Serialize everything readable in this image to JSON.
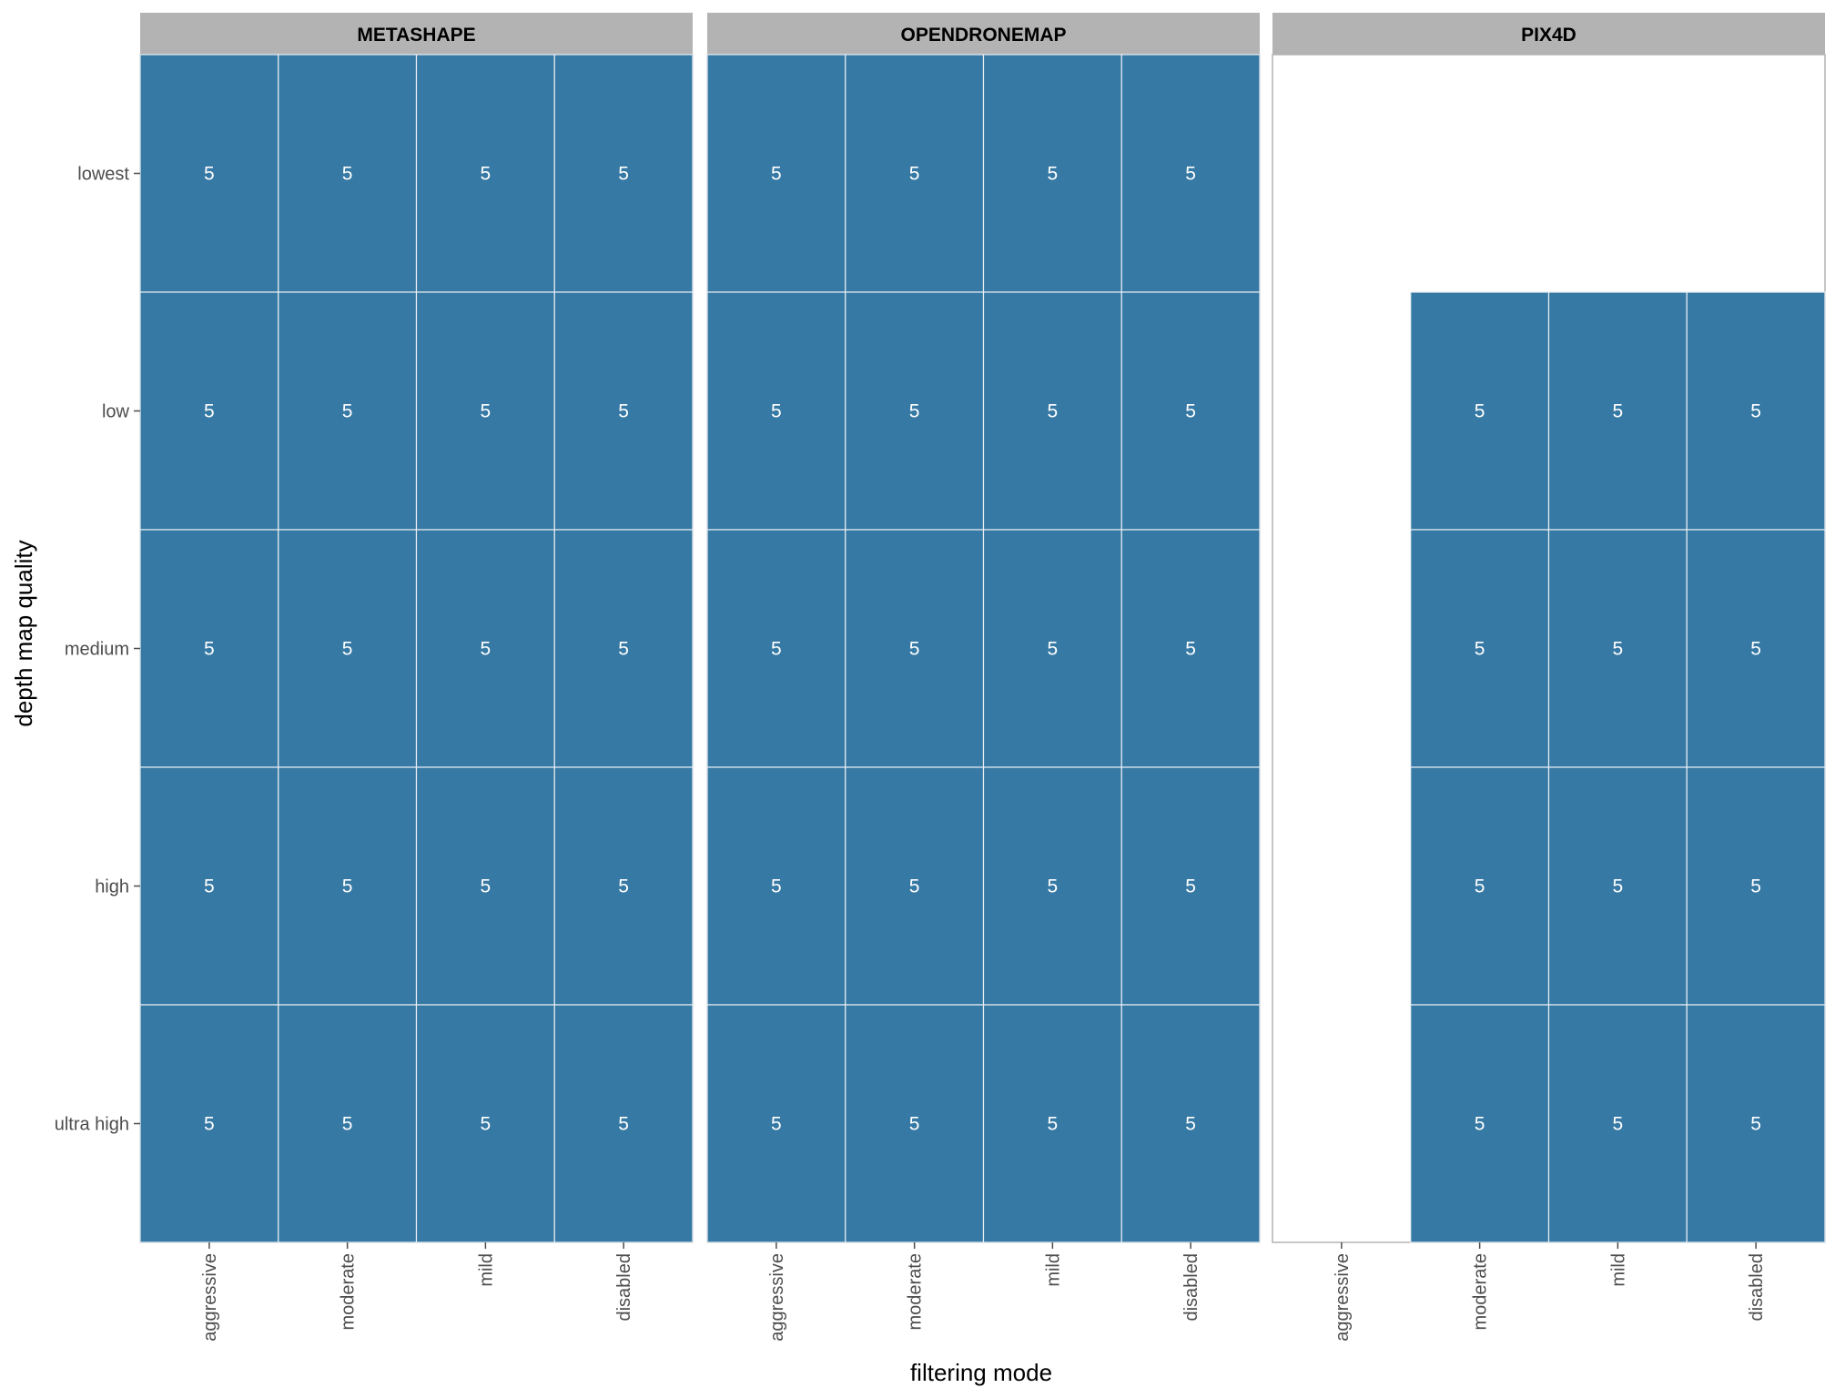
{
  "colors": {
    "tile": "#3679a4",
    "tile_border": "#e8eef3",
    "strip_bg": "#b3b3b3",
    "panel_border": "#b3b3b3",
    "tick": "#4d4d4d",
    "cell_text": "#ffffff"
  },
  "chart_data": {
    "type": "heatmap",
    "title": "",
    "xlabel": "filtering mode",
    "ylabel": "depth map quality",
    "x_categories": [
      "aggressive",
      "moderate",
      "mild",
      "disabled"
    ],
    "y_categories": [
      "lowest",
      "low",
      "medium",
      "high",
      "ultra high"
    ],
    "legend": "none",
    "grid": false,
    "panels": [
      {
        "name": "METASHAPE",
        "values": [
          [
            5,
            5,
            5,
            5
          ],
          [
            5,
            5,
            5,
            5
          ],
          [
            5,
            5,
            5,
            5
          ],
          [
            5,
            5,
            5,
            5
          ],
          [
            5,
            5,
            5,
            5
          ]
        ]
      },
      {
        "name": "OPENDRONEMAP",
        "values": [
          [
            5,
            5,
            5,
            5
          ],
          [
            5,
            5,
            5,
            5
          ],
          [
            5,
            5,
            5,
            5
          ],
          [
            5,
            5,
            5,
            5
          ],
          [
            5,
            5,
            5,
            5
          ]
        ]
      },
      {
        "name": "PIX4D",
        "values": [
          [
            null,
            null,
            null,
            null
          ],
          [
            null,
            5,
            5,
            5
          ],
          [
            null,
            5,
            5,
            5
          ],
          [
            null,
            5,
            5,
            5
          ],
          [
            null,
            5,
            5,
            5
          ]
        ]
      }
    ]
  }
}
